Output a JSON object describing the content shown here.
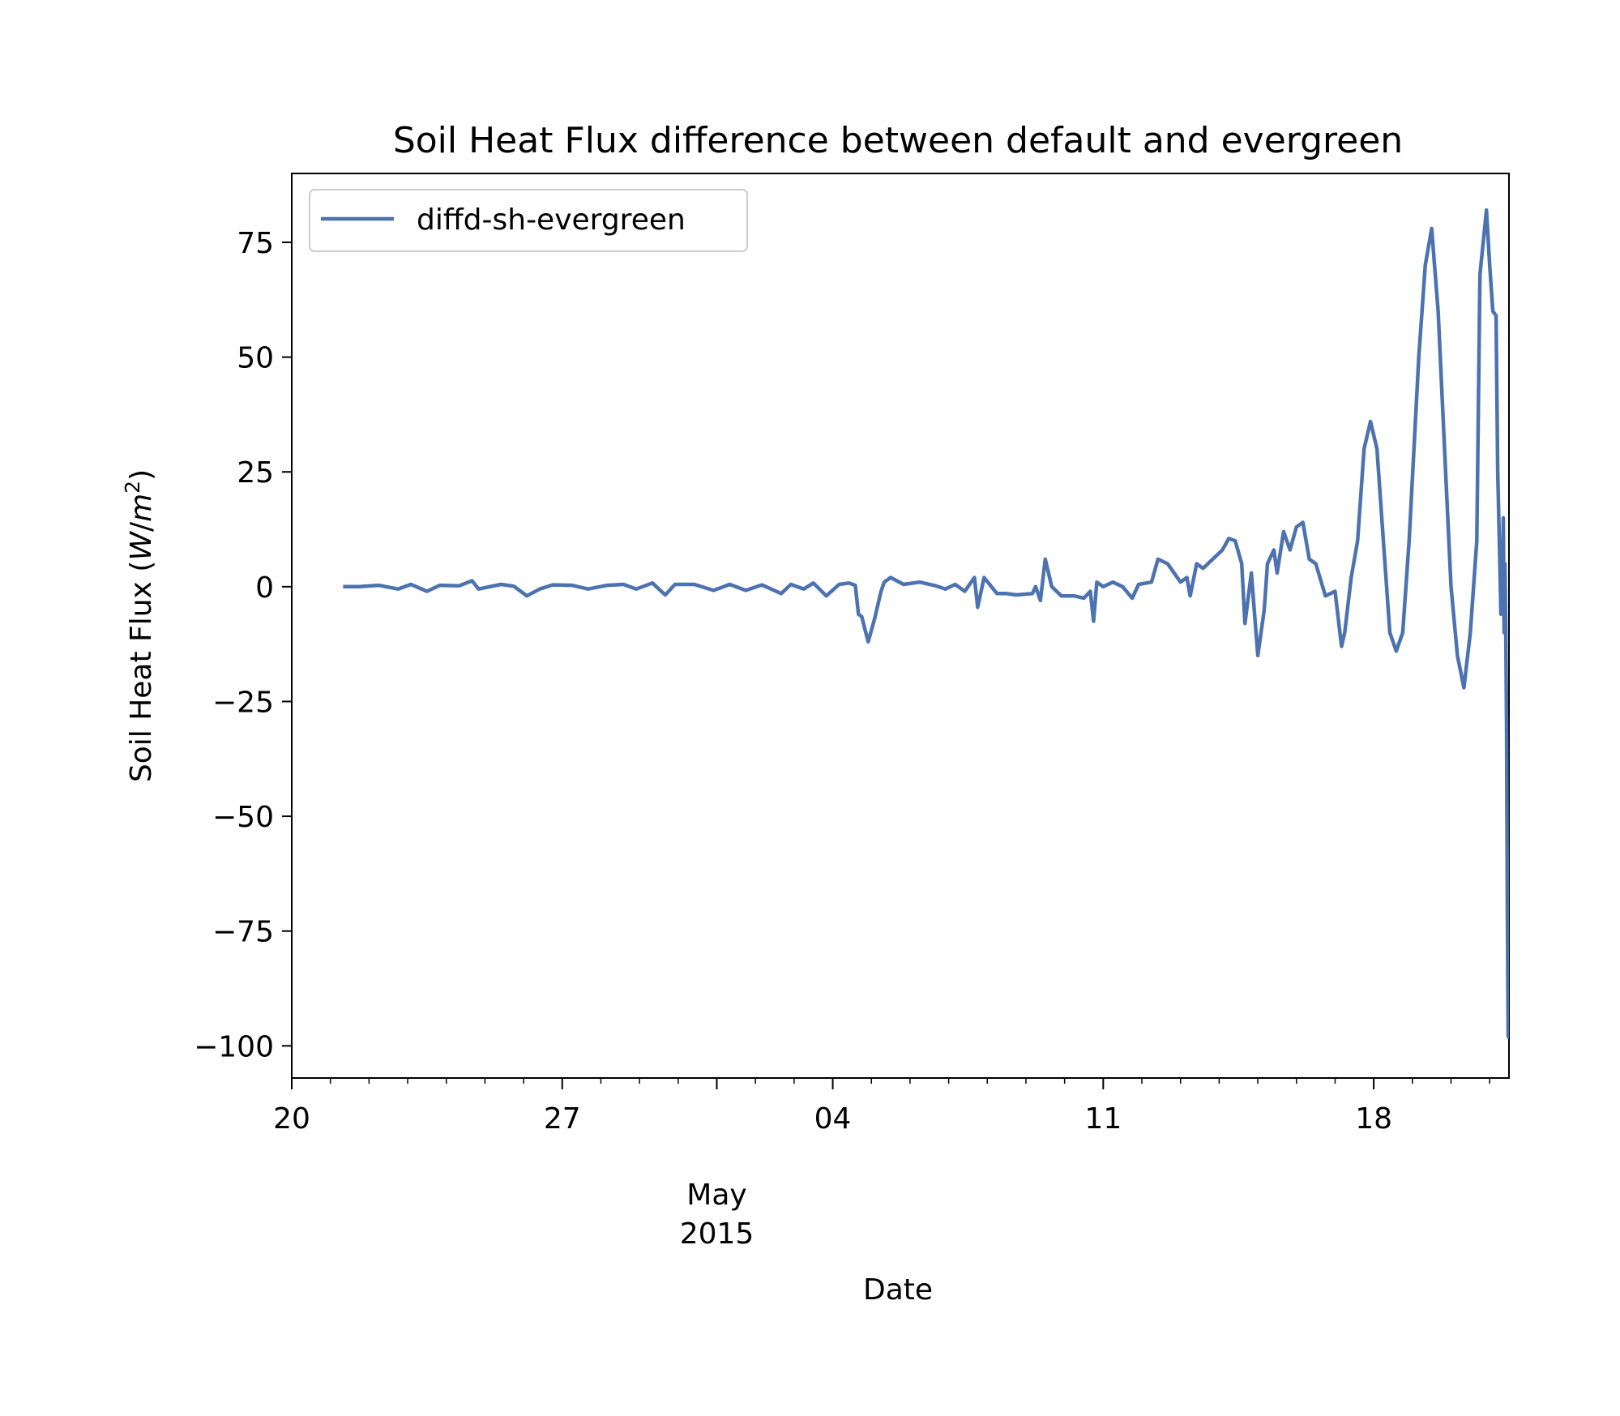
{
  "chart_data": {
    "type": "line",
    "title": "Soil Heat Flux difference between default and evergreen",
    "xlabel": "Date",
    "ylabel": "Soil Heat Flux (W/m²)",
    "ylabel_parts": {
      "text": "Soil Heat Flux (",
      "unit_w": "W",
      "unit_sep": "/",
      "unit_m": "m",
      "unit_exp": "2",
      "close": ")"
    },
    "x_is_date": true,
    "xlim": [
      "2015-04-20T00:00",
      "2015-05-21T12:00"
    ],
    "ylim": [
      -107,
      90
    ],
    "x_ticks": [
      {
        "date": "2015-04-20T00:00",
        "label": "20"
      },
      {
        "date": "2015-04-27T00:00",
        "label": "27"
      },
      {
        "date": "2015-05-04T00:00",
        "label": "04"
      },
      {
        "date": "2015-05-11T00:00",
        "label": "11"
      },
      {
        "date": "2015-05-18T00:00",
        "label": "18"
      }
    ],
    "x_minor_ticks": [
      "2015-04-21",
      "2015-04-22",
      "2015-04-23",
      "2015-04-24",
      "2015-04-25",
      "2015-04-26",
      "2015-04-28",
      "2015-04-29",
      "2015-04-30",
      "2015-05-01",
      "2015-05-02",
      "2015-05-03",
      "2015-05-05",
      "2015-05-06",
      "2015-05-07",
      "2015-05-08",
      "2015-05-09",
      "2015-05-10",
      "2015-05-12",
      "2015-05-13",
      "2015-05-14",
      "2015-05-15",
      "2015-05-16",
      "2015-05-17",
      "2015-05-19",
      "2015-05-20",
      "2015-05-21"
    ],
    "month_label": {
      "line1": "May",
      "line2": "2015",
      "date": "2015-05-01T00:00"
    },
    "y_ticks": [
      {
        "value": 75,
        "label": "75"
      },
      {
        "value": 50,
        "label": "50"
      },
      {
        "value": 25,
        "label": "25"
      },
      {
        "value": 0,
        "label": "0"
      },
      {
        "value": -25,
        "label": "−25"
      },
      {
        "value": -50,
        "label": "−50"
      },
      {
        "value": -75,
        "label": "−75"
      },
      {
        "value": -100,
        "label": "−100"
      }
    ],
    "legend": {
      "position": "upper left"
    },
    "series": [
      {
        "name": "diffd-sh-evergreen",
        "color": "#4c72b0",
        "points": [
          [
            "2015-04-21T09:00",
            0
          ],
          [
            "2015-04-21T18:00",
            0
          ],
          [
            "2015-04-22T06:00",
            0.3
          ],
          [
            "2015-04-22T18:00",
            -0.5
          ],
          [
            "2015-04-23T02:00",
            0.5
          ],
          [
            "2015-04-23T12:00",
            -1
          ],
          [
            "2015-04-23T20:00",
            0.3
          ],
          [
            "2015-04-24T08:00",
            0.2
          ],
          [
            "2015-04-24T16:00",
            1.3
          ],
          [
            "2015-04-24T20:00",
            -0.5
          ],
          [
            "2015-04-25T10:00",
            0.5
          ],
          [
            "2015-04-25T18:00",
            0.1
          ],
          [
            "2015-04-26T02:00",
            -2
          ],
          [
            "2015-04-26T10:00",
            -0.5
          ],
          [
            "2015-04-26T18:00",
            0.4
          ],
          [
            "2015-04-27T06:00",
            0.3
          ],
          [
            "2015-04-27T16:00",
            -0.5
          ],
          [
            "2015-04-28T04:00",
            0.3
          ],
          [
            "2015-04-28T14:00",
            0.5
          ],
          [
            "2015-04-28T22:00",
            -0.5
          ],
          [
            "2015-04-29T08:00",
            0.8
          ],
          [
            "2015-04-29T16:00",
            -1.8
          ],
          [
            "2015-04-29T22:00",
            0.5
          ],
          [
            "2015-04-30T10:00",
            0.5
          ],
          [
            "2015-04-30T22:00",
            -0.8
          ],
          [
            "2015-05-01T08:00",
            0.5
          ],
          [
            "2015-05-01T18:00",
            -0.8
          ],
          [
            "2015-05-02T04:00",
            0.4
          ],
          [
            "2015-05-02T16:00",
            -1.5
          ],
          [
            "2015-05-02T22:00",
            0.5
          ],
          [
            "2015-05-03T06:00",
            -0.5
          ],
          [
            "2015-05-03T12:00",
            0.8
          ],
          [
            "2015-05-03T20:00",
            -2
          ],
          [
            "2015-05-04T04:00",
            0.5
          ],
          [
            "2015-05-04T10:00",
            0.8
          ],
          [
            "2015-05-04T14:00",
            0.3
          ],
          [
            "2015-05-04T16:00",
            -6
          ],
          [
            "2015-05-04T18:00",
            -6.5
          ],
          [
            "2015-05-04T22:00",
            -12
          ],
          [
            "2015-05-05T02:00",
            -7
          ],
          [
            "2015-05-05T06:00",
            -1
          ],
          [
            "2015-05-05T08:00",
            1
          ],
          [
            "2015-05-05T12:00",
            2
          ],
          [
            "2015-05-05T20:00",
            0.5
          ],
          [
            "2015-05-06T06:00",
            1
          ],
          [
            "2015-05-06T16:00",
            0.2
          ],
          [
            "2015-05-06T22:00",
            -0.5
          ],
          [
            "2015-05-07T04:00",
            0.5
          ],
          [
            "2015-05-07T10:00",
            -1
          ],
          [
            "2015-05-07T16:00",
            2
          ],
          [
            "2015-05-07T18:00",
            -4.5
          ],
          [
            "2015-05-07T22:00",
            2
          ],
          [
            "2015-05-08T06:00",
            -1.5
          ],
          [
            "2015-05-08T12:00",
            -1.5
          ],
          [
            "2015-05-08T18:00",
            -1.8
          ],
          [
            "2015-05-09T04:00",
            -1.5
          ],
          [
            "2015-05-09T06:00",
            0
          ],
          [
            "2015-05-09T09:00",
            -3
          ],
          [
            "2015-05-09T12:00",
            6
          ],
          [
            "2015-05-09T16:00",
            0
          ],
          [
            "2015-05-09T22:00",
            -2
          ],
          [
            "2015-05-10T06:00",
            -2
          ],
          [
            "2015-05-10T12:00",
            -2.5
          ],
          [
            "2015-05-10T16:00",
            -1
          ],
          [
            "2015-05-10T18:00",
            -7.5
          ],
          [
            "2015-05-10T20:00",
            1
          ],
          [
            "2015-05-11T00:00",
            0
          ],
          [
            "2015-05-11T06:00",
            1
          ],
          [
            "2015-05-11T12:00",
            0
          ],
          [
            "2015-05-11T18:00",
            -2.5
          ],
          [
            "2015-05-11T22:00",
            0.5
          ],
          [
            "2015-05-12T06:00",
            1
          ],
          [
            "2015-05-12T10:00",
            6
          ],
          [
            "2015-05-12T16:00",
            5
          ],
          [
            "2015-05-12T20:00",
            3
          ],
          [
            "2015-05-13T00:00",
            1
          ],
          [
            "2015-05-13T04:00",
            2
          ],
          [
            "2015-05-13T06:00",
            -2
          ],
          [
            "2015-05-13T10:00",
            5
          ],
          [
            "2015-05-13T14:00",
            4
          ],
          [
            "2015-05-13T20:00",
            6
          ],
          [
            "2015-05-14T02:00",
            8
          ],
          [
            "2015-05-14T06:00",
            10.5
          ],
          [
            "2015-05-14T10:00",
            10
          ],
          [
            "2015-05-14T14:00",
            5
          ],
          [
            "2015-05-14T16:00",
            -8
          ],
          [
            "2015-05-14T20:00",
            3
          ],
          [
            "2015-05-15T00:00",
            -15
          ],
          [
            "2015-05-15T04:00",
            -5
          ],
          [
            "2015-05-15T06:00",
            5
          ],
          [
            "2015-05-15T10:00",
            8
          ],
          [
            "2015-05-15T12:00",
            3
          ],
          [
            "2015-05-15T16:00",
            12
          ],
          [
            "2015-05-15T20:00",
            8
          ],
          [
            "2015-05-16T00:00",
            13
          ],
          [
            "2015-05-16T04:00",
            14
          ],
          [
            "2015-05-16T08:00",
            6
          ],
          [
            "2015-05-16T12:00",
            5
          ],
          [
            "2015-05-16T18:00",
            -2
          ],
          [
            "2015-05-17T00:00",
            -1
          ],
          [
            "2015-05-17T04:00",
            -13
          ],
          [
            "2015-05-17T06:00",
            -10
          ],
          [
            "2015-05-17T10:00",
            2
          ],
          [
            "2015-05-17T14:00",
            10
          ],
          [
            "2015-05-17T18:00",
            30
          ],
          [
            "2015-05-17T22:00",
            36
          ],
          [
            "2015-05-18T02:00",
            30
          ],
          [
            "2015-05-18T06:00",
            10
          ],
          [
            "2015-05-18T10:00",
            -10
          ],
          [
            "2015-05-18T14:00",
            -14
          ],
          [
            "2015-05-18T18:00",
            -10
          ],
          [
            "2015-05-18T22:00",
            10
          ],
          [
            "2015-05-19T04:00",
            50
          ],
          [
            "2015-05-19T08:00",
            70
          ],
          [
            "2015-05-19T12:00",
            78
          ],
          [
            "2015-05-19T16:00",
            60
          ],
          [
            "2015-05-19T20:00",
            30
          ],
          [
            "2015-05-20T00:00",
            0
          ],
          [
            "2015-05-20T04:00",
            -15
          ],
          [
            "2015-05-20T08:00",
            -22
          ],
          [
            "2015-05-20T12:00",
            -10
          ],
          [
            "2015-05-20T16:00",
            10
          ],
          [
            "2015-05-20T18:00",
            68
          ],
          [
            "2015-05-20T20:00",
            75
          ],
          [
            "2015-05-20T22:00",
            82
          ],
          [
            "2015-05-21T00:00",
            70
          ],
          [
            "2015-05-21T02:00",
            60
          ],
          [
            "2015-05-21T04:00",
            59
          ],
          [
            "2015-05-21T05:00",
            25
          ],
          [
            "2015-05-21T06:00",
            10
          ],
          [
            "2015-05-21T07:00",
            -6
          ],
          [
            "2015-05-21T08:00",
            2
          ],
          [
            "2015-05-21T08:30",
            15
          ],
          [
            "2015-05-21T09:00",
            -10
          ],
          [
            "2015-05-21T09:30",
            5
          ],
          [
            "2015-05-21T10:00",
            -8
          ],
          [
            "2015-05-21T10:30",
            -30
          ],
          [
            "2015-05-21T11:00",
            -70
          ],
          [
            "2015-05-21T11:30",
            -98
          ],
          [
            "2015-05-21T12:00",
            -94
          ]
        ]
      }
    ]
  }
}
